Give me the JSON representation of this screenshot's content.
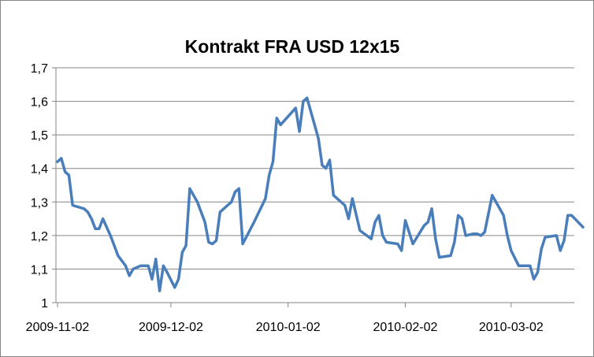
{
  "chart_data": {
    "type": "line",
    "title": "Kontrakt FRA USD 12x15",
    "xlabel": "",
    "ylabel": "",
    "ylim": [
      1,
      1.7
    ],
    "yticks": [
      "1",
      "1,1",
      "1,2",
      "1,3",
      "1,4",
      "1,5",
      "1,6",
      "1,7"
    ],
    "xlim": [
      "2009-11-02",
      "2010-03-16"
    ],
    "xticks": [
      "2009-11-02",
      "2009-12-02",
      "2010-01-02",
      "2010-02-02",
      "2010-03-02"
    ],
    "grid": "horizontal",
    "legend": "none",
    "series": [
      {
        "color": "#4a7ebb",
        "points": [
          [
            "2009-11-02",
            1.42
          ],
          [
            "2009-11-03",
            1.43
          ],
          [
            "2009-11-04",
            1.39
          ],
          [
            "2009-11-05",
            1.38
          ],
          [
            "2009-11-06",
            1.29
          ],
          [
            "2009-11-09",
            1.28
          ],
          [
            "2009-11-10",
            1.27
          ],
          [
            "2009-11-11",
            1.25
          ],
          [
            "2009-11-12",
            1.22
          ],
          [
            "2009-11-13",
            1.22
          ],
          [
            "2009-11-14",
            1.25
          ],
          [
            "2009-11-16",
            1.2
          ],
          [
            "2009-11-18",
            1.14
          ],
          [
            "2009-11-20",
            1.11
          ],
          [
            "2009-11-21",
            1.08
          ],
          [
            "2009-11-22",
            1.1
          ],
          [
            "2009-11-24",
            1.11
          ],
          [
            "2009-11-26",
            1.11
          ],
          [
            "2009-11-27",
            1.07
          ],
          [
            "2009-11-28",
            1.13
          ],
          [
            "2009-11-29",
            1.035
          ],
          [
            "2009-11-30",
            1.11
          ],
          [
            "2009-12-01",
            1.09
          ],
          [
            "2009-12-03",
            1.045
          ],
          [
            "2009-12-04",
            1.07
          ],
          [
            "2009-12-05",
            1.15
          ],
          [
            "2009-12-06",
            1.17
          ],
          [
            "2009-12-07",
            1.34
          ],
          [
            "2009-12-09",
            1.3
          ],
          [
            "2009-12-11",
            1.24
          ],
          [
            "2009-12-12",
            1.18
          ],
          [
            "2009-12-13",
            1.175
          ],
          [
            "2009-12-14",
            1.185
          ],
          [
            "2009-12-15",
            1.27
          ],
          [
            "2009-12-17",
            1.29
          ],
          [
            "2009-12-18",
            1.3
          ],
          [
            "2009-12-19",
            1.33
          ],
          [
            "2009-12-20",
            1.34
          ],
          [
            "2009-12-21",
            1.175
          ],
          [
            "2009-12-24",
            1.24
          ],
          [
            "2009-12-27",
            1.31
          ],
          [
            "2009-12-28",
            1.38
          ],
          [
            "2009-12-29",
            1.42
          ],
          [
            "2009-12-30",
            1.55
          ],
          [
            "2009-12-31",
            1.53
          ],
          [
            "2010-01-04",
            1.58
          ],
          [
            "2010-01-05",
            1.51
          ],
          [
            "2010-01-06",
            1.6
          ],
          [
            "2010-01-07",
            1.61
          ],
          [
            "2010-01-10",
            1.49
          ],
          [
            "2010-01-11",
            1.41
          ],
          [
            "2010-01-12",
            1.4
          ],
          [
            "2010-01-13",
            1.425
          ],
          [
            "2010-01-14",
            1.32
          ],
          [
            "2010-01-17",
            1.29
          ],
          [
            "2010-01-18",
            1.25
          ],
          [
            "2010-01-19",
            1.31
          ],
          [
            "2010-01-21",
            1.215
          ],
          [
            "2010-01-24",
            1.19
          ],
          [
            "2010-01-25",
            1.24
          ],
          [
            "2010-01-26",
            1.26
          ],
          [
            "2010-01-27",
            1.2
          ],
          [
            "2010-01-28",
            1.18
          ],
          [
            "2010-01-31",
            1.175
          ],
          [
            "2010-02-01",
            1.155
          ],
          [
            "2010-02-02",
            1.245
          ],
          [
            "2010-02-04",
            1.175
          ],
          [
            "2010-02-07",
            1.23
          ],
          [
            "2010-02-08",
            1.24
          ],
          [
            "2010-02-09",
            1.28
          ],
          [
            "2010-02-10",
            1.19
          ],
          [
            "2010-02-11",
            1.135
          ],
          [
            "2010-02-14",
            1.14
          ],
          [
            "2010-02-15",
            1.18
          ],
          [
            "2010-02-16",
            1.26
          ],
          [
            "2010-02-17",
            1.25
          ],
          [
            "2010-02-18",
            1.2
          ],
          [
            "2010-02-20",
            1.205
          ],
          [
            "2010-02-21",
            1.205
          ],
          [
            "2010-02-22",
            1.2
          ],
          [
            "2010-02-23",
            1.21
          ],
          [
            "2010-02-25",
            1.32
          ],
          [
            "2010-02-28",
            1.26
          ],
          [
            "2010-03-01",
            1.2
          ],
          [
            "2010-03-02",
            1.155
          ],
          [
            "2010-03-04",
            1.11
          ],
          [
            "2010-03-06",
            1.11
          ],
          [
            "2010-03-07",
            1.11
          ],
          [
            "2010-03-08",
            1.07
          ],
          [
            "2010-03-09",
            1.09
          ],
          [
            "2010-03-10",
            1.16
          ],
          [
            "2010-03-11",
            1.195
          ],
          [
            "2010-03-14",
            1.2
          ],
          [
            "2010-03-15",
            1.155
          ],
          [
            "2010-03-16",
            1.185
          ],
          [
            "2010-03-17",
            1.26
          ],
          [
            "2010-03-18",
            1.26
          ],
          [
            "2010-03-21",
            1.225
          ]
        ]
      }
    ]
  }
}
